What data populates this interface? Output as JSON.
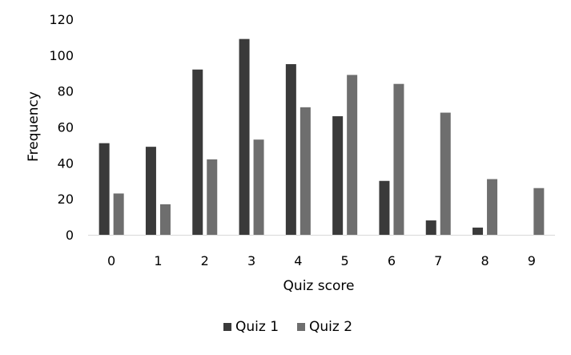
{
  "chart_data": {
    "type": "bar",
    "title": "",
    "xlabel": "Quiz score",
    "ylabel": "Frequency",
    "ylim": [
      0,
      120
    ],
    "yticks": [
      "0",
      "20",
      "40",
      "60",
      "80",
      "100",
      "120"
    ],
    "categories": [
      "0",
      "1",
      "2",
      "3",
      "4",
      "5",
      "6",
      "7",
      "8",
      "9"
    ],
    "grid": false,
    "legend_position": "bottom",
    "series": [
      {
        "name": "Quiz 1",
        "color": "#3a3a3a",
        "values": [
          51,
          49,
          92,
          109,
          95,
          66,
          30,
          8,
          4,
          0
        ]
      },
      {
        "name": "Quiz 2",
        "color": "#6e6e6e",
        "values": [
          23,
          17,
          42,
          53,
          71,
          89,
          84,
          68,
          31,
          26
        ]
      }
    ]
  }
}
